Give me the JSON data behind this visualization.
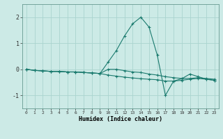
{
  "title": "",
  "xlabel": "Humidex (Indice chaleur)",
  "ylabel": "",
  "bg_color": "#cceae6",
  "grid_color": "#aad4cf",
  "line_color": "#1a7a6e",
  "x": [
    0,
    1,
    2,
    3,
    4,
    5,
    6,
    7,
    8,
    9,
    10,
    11,
    12,
    13,
    14,
    15,
    16,
    17,
    18,
    19,
    20,
    21,
    22,
    23
  ],
  "line1": [
    0.0,
    -0.04,
    -0.06,
    -0.08,
    -0.08,
    -0.1,
    -0.1,
    -0.12,
    -0.14,
    -0.16,
    0.0,
    0.0,
    -0.05,
    -0.1,
    -0.12,
    -0.18,
    -0.22,
    -0.28,
    -0.32,
    -0.35,
    -0.35,
    -0.32,
    -0.35,
    -0.38
  ],
  "line2": [
    0.0,
    -0.04,
    -0.06,
    -0.08,
    -0.08,
    -0.1,
    -0.1,
    -0.12,
    -0.14,
    -0.16,
    0.28,
    0.72,
    1.28,
    1.75,
    2.0,
    1.62,
    0.55,
    -1.0,
    -0.45,
    -0.36,
    -0.18,
    -0.28,
    -0.38,
    -0.42
  ],
  "line3": [
    0.0,
    -0.04,
    -0.06,
    -0.08,
    -0.08,
    -0.1,
    -0.1,
    -0.12,
    -0.14,
    -0.16,
    -0.22,
    -0.26,
    -0.3,
    -0.33,
    -0.36,
    -0.38,
    -0.4,
    -0.45,
    -0.45,
    -0.42,
    -0.38,
    -0.35,
    -0.38,
    -0.42
  ],
  "ylim": [
    -1.5,
    2.5
  ],
  "yticks": [
    -1,
    0,
    1,
    2
  ],
  "xticks": [
    0,
    1,
    2,
    3,
    4,
    5,
    6,
    7,
    8,
    9,
    10,
    11,
    12,
    13,
    14,
    15,
    16,
    17,
    18,
    19,
    20,
    21,
    22,
    23
  ],
  "marker": "+",
  "markersize": 3,
  "linewidth": 0.8
}
